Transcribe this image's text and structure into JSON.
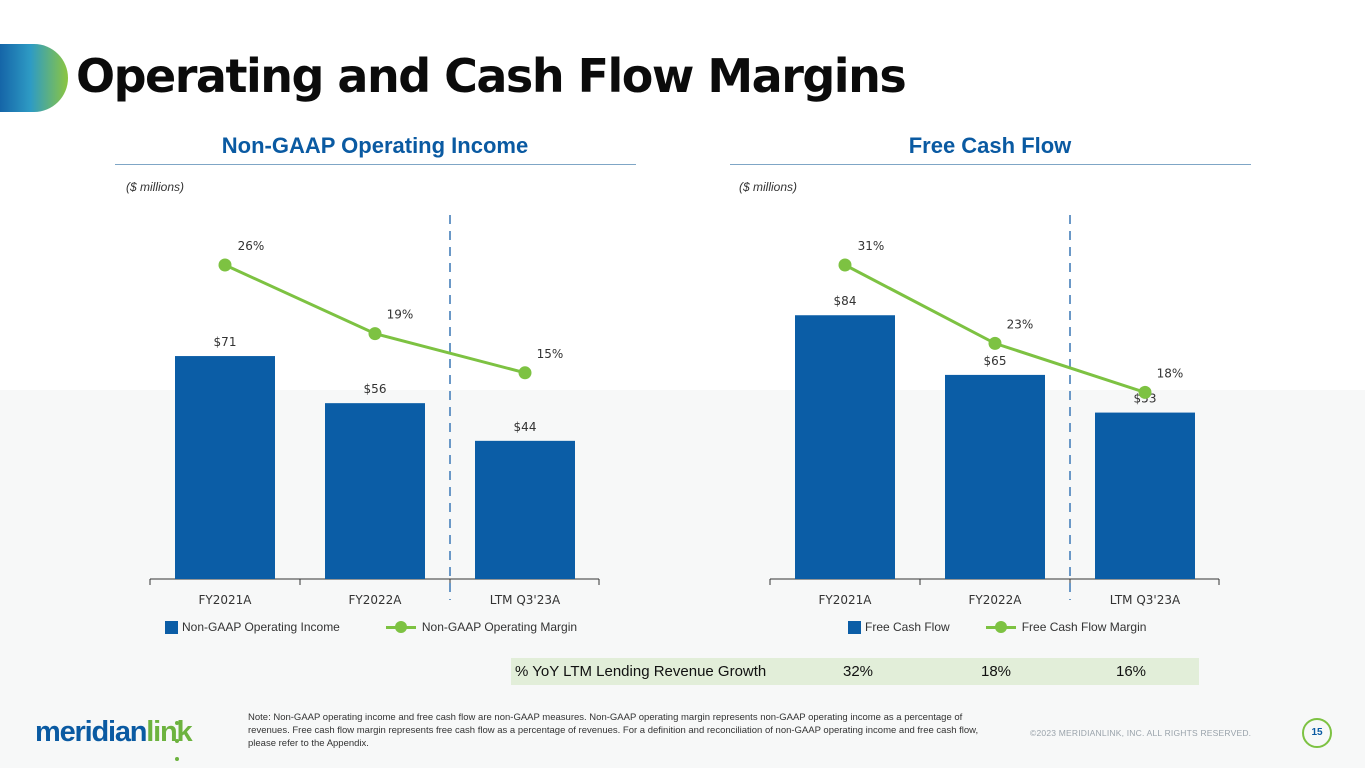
{
  "title": "Operating and Cash Flow Margins",
  "colors": {
    "bar": "#0b5da6",
    "line": "#7dc242",
    "title_blue": "#0a5aa2",
    "growth_bg": "#e2eed9"
  },
  "chart_data": [
    {
      "type": "bar",
      "title": "Non-GAAP Operating Income",
      "units": "($ millions)",
      "categories": [
        "FY2021A",
        "FY2022A",
        "LTM Q3'23A"
      ],
      "series": [
        {
          "name": "Non-GAAP Operating Income",
          "values": [
            71,
            56,
            44
          ],
          "labels": [
            "$71",
            "$56",
            "$44"
          ]
        },
        {
          "name": "Non-GAAP Operating Margin",
          "type": "line",
          "values": [
            26,
            19,
            15
          ],
          "labels": [
            "26%",
            "19%",
            "15%"
          ]
        }
      ],
      "legend": [
        "Non-GAAP Operating Income",
        "Non-GAAP Operating Margin"
      ]
    },
    {
      "type": "bar",
      "title": "Free Cash Flow",
      "units": "($ millions)",
      "categories": [
        "FY2021A",
        "FY2022A",
        "LTM Q3'23A"
      ],
      "series": [
        {
          "name": "Free Cash Flow",
          "values": [
            84,
            65,
            53
          ],
          "labels": [
            "$84",
            "$65",
            "$53"
          ]
        },
        {
          "name": "Free Cash Flow Margin",
          "type": "line",
          "values": [
            31,
            23,
            18
          ],
          "labels": [
            "31%",
            "23%",
            "18%"
          ]
        }
      ],
      "legend": [
        "Free Cash Flow",
        "Free Cash Flow Margin"
      ]
    }
  ],
  "growth_row": {
    "label": "% YoY LTM Lending Revenue Growth",
    "values": [
      "32%",
      "18%",
      "16%"
    ]
  },
  "footer": {
    "logo_part1": "meridian",
    "logo_part2": "link",
    "note": "Note: Non-GAAP operating income and free cash flow are non-GAAP measures. Non-GAAP operating margin represents non-GAAP operating income as a percentage of revenues. Free cash flow margin represents free cash flow as a percentage of revenues. For a definition and reconciliation of non-GAAP operating income and free cash flow, please refer to the Appendix.",
    "copyright": "©2023 MERIDIANLINK, INC. ALL RIGHTS RESERVED.",
    "page_number": "15"
  }
}
